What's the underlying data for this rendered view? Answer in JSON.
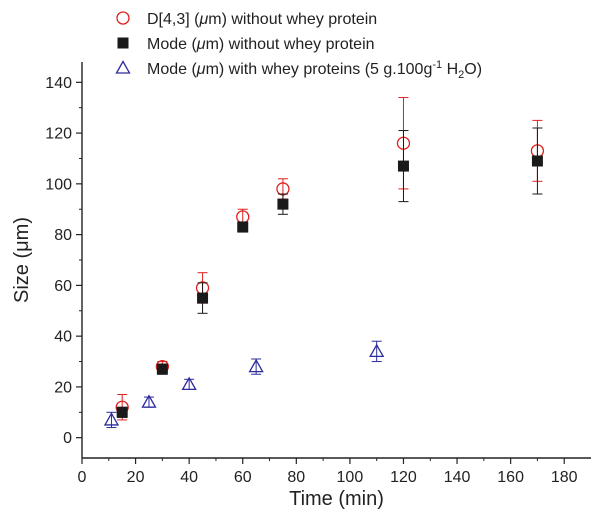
{
  "chart_data": {
    "type": "scatter",
    "xlabel": "Time (min)",
    "ylabel": "Size (μm)",
    "xlim": [
      0,
      190
    ],
    "ylim": [
      -8,
      148
    ],
    "xticks": [
      0,
      20,
      40,
      60,
      80,
      100,
      120,
      140,
      160,
      180
    ],
    "yticks": [
      0,
      20,
      40,
      60,
      80,
      100,
      120,
      140
    ],
    "grid": false,
    "legend_position": "top-left",
    "series": [
      {
        "name": "D[4,3] (μm)   without whey protein",
        "label_parts": {
          "pre": "D[4,3] (",
          "mu": "μ",
          "post": "m)   without whey protein"
        },
        "marker": "circle-open",
        "color": "#e02020",
        "x": [
          15,
          30,
          45,
          60,
          75,
          120,
          170
        ],
        "y": [
          12,
          28,
          59,
          87,
          98,
          116,
          113
        ],
        "err": [
          5,
          2,
          6,
          3,
          4,
          18,
          12
        ]
      },
      {
        "name": "Mode (μm)   without whey protein",
        "label_parts": {
          "pre": "Mode (",
          "mu": "μ",
          "post": "m)   without whey protein"
        },
        "marker": "square-filled",
        "color": "#1a1a1a",
        "x": [
          15,
          30,
          45,
          60,
          75,
          120,
          170
        ],
        "y": [
          10,
          27,
          55,
          83,
          92,
          107,
          109
        ],
        "err": [
          2,
          2,
          6,
          2,
          4,
          14,
          13
        ]
      },
      {
        "name": "Mode (μm)   with whey proteins (5 g.100g-1 H2O)",
        "label_parts": {
          "pre": "Mode (",
          "mu": "μ",
          "post": "m)   with whey proteins (5 g.100g",
          "sup": "-1",
          "mid": " H",
          "sub": "2",
          "end": "O)"
        },
        "marker": "triangle-open",
        "color": "#2b2b9e",
        "x": [
          11,
          25,
          40,
          65,
          110
        ],
        "y": [
          7,
          14,
          21,
          28,
          34
        ],
        "err": [
          3,
          2,
          2,
          3,
          4
        ]
      }
    ]
  }
}
